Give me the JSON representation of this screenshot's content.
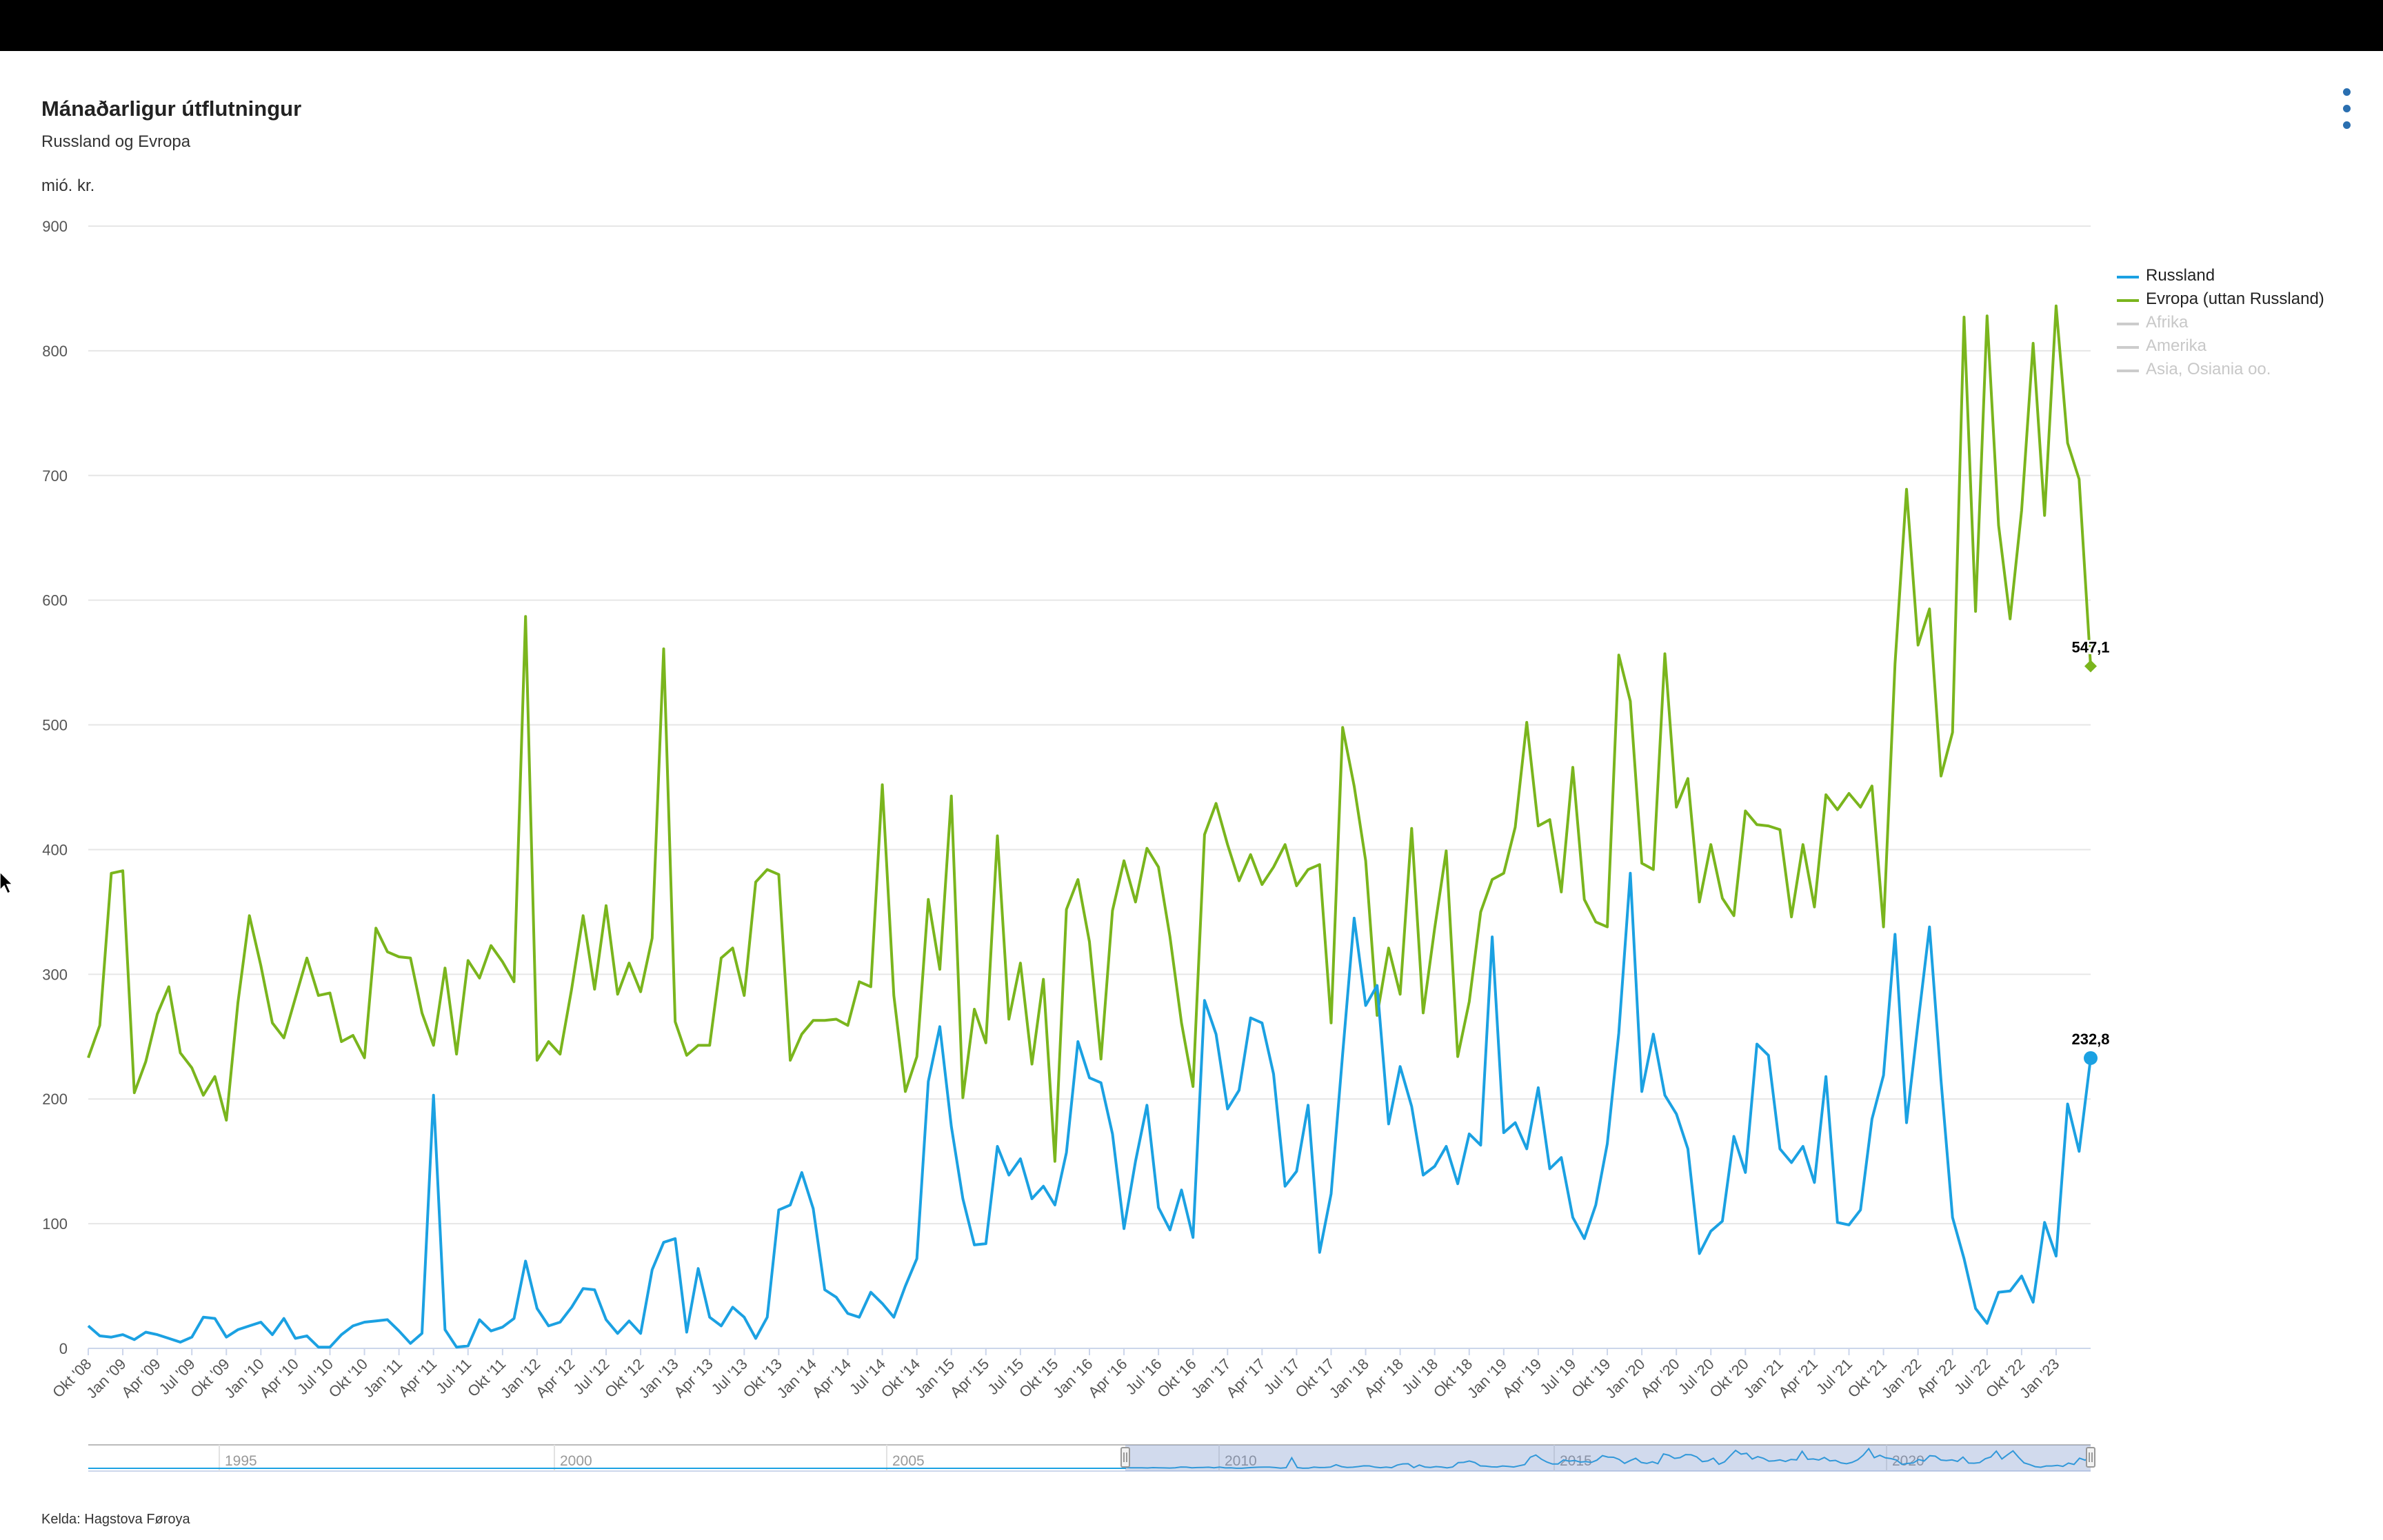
{
  "header": {
    "title": "Mánaðarligur útflutningur",
    "subtitle": "Russland og Evropa",
    "unit": "mió. kr."
  },
  "footer": {
    "source": "Kelda: Hagstova Føroya"
  },
  "menu": {
    "icon": "kebab-menu-icon",
    "color": "#2a6fb0"
  },
  "legend": [
    {
      "label": "Russland",
      "color": "#1ba1e2",
      "active": true
    },
    {
      "label": "Evropa (uttan Russland)",
      "color": "#7ab51d",
      "active": true
    },
    {
      "label": "Afrika",
      "color": "#cccccc",
      "active": false
    },
    {
      "label": "Amerika",
      "color": "#cccccc",
      "active": false
    },
    {
      "label": "Asia, Osiania oo.",
      "color": "#cccccc",
      "active": false
    }
  ],
  "navigator": {
    "year_labels": [
      "1995",
      "2000",
      "2005",
      "2010",
      "2015",
      "2020"
    ]
  },
  "chart_data": {
    "type": "line",
    "title": "Mánaðarligur útflutningur",
    "subtitle": "Russland og Evropa",
    "ylabel": "mió. kr.",
    "ylim": [
      0,
      900
    ],
    "yticks": [
      0,
      100,
      200,
      300,
      400,
      500,
      600,
      700,
      800,
      900
    ],
    "grid": true,
    "legend_position": "right",
    "x_start": "2008-10",
    "x_end": "2023-03",
    "x_tick_labels": [
      "Okt '08",
      "Jan '09",
      "Apr '09",
      "Jul '09",
      "Okt '09",
      "Jan '10",
      "Apr '10",
      "Jul '10",
      "Okt '10",
      "Jan '11",
      "Apr '11",
      "Jul '11",
      "Okt '11",
      "Jan '12",
      "Apr '12",
      "Jul '12",
      "Okt '12",
      "Jan '13",
      "Apr '13",
      "Jul '13",
      "Okt '13",
      "Jan '14",
      "Apr '14",
      "Jul '14",
      "Okt '14",
      "Jan '15",
      "Apr '15",
      "Jul '15",
      "Okt '15",
      "Jan '16",
      "Apr '16",
      "Jul '16",
      "Okt '16",
      "Jan '17",
      "Apr '17",
      "Jul '17",
      "Okt '17",
      "Jan '18",
      "Apr '18",
      "Jul '18",
      "Okt '18",
      "Jan '19",
      "Apr '19",
      "Jul '19",
      "Okt '19",
      "Jan '20",
      "Apr '20",
      "Jul '20",
      "Okt '20",
      "Jan '21",
      "Apr '21",
      "Jul '21",
      "Okt '21",
      "Jan '22",
      "Apr '22",
      "Jul '22",
      "Okt '22",
      "Jan '23"
    ],
    "series": [
      {
        "name": "Russland",
        "color": "#1ba1e2",
        "last_value_label": "232,8",
        "values": [
          18,
          10,
          9,
          11,
          7,
          13,
          11,
          8,
          5,
          9,
          25,
          24,
          9,
          15,
          18,
          21,
          11,
          24,
          8,
          10,
          1,
          1,
          11,
          18,
          21,
          22,
          23,
          14,
          4,
          12,
          203,
          15,
          1,
          2,
          23,
          14,
          17,
          24,
          70,
          32,
          18,
          21,
          33,
          48,
          47,
          23,
          12,
          22,
          12,
          63,
          85,
          88,
          13,
          64,
          25,
          18,
          33,
          25,
          8,
          25,
          111,
          115,
          141,
          112,
          47,
          41,
          28,
          25,
          45,
          36,
          25,
          50,
          72,
          214,
          258,
          178,
          120,
          83,
          84,
          162,
          139,
          152,
          120,
          130,
          115,
          157,
          246,
          217,
          213,
          172,
          96,
          150,
          195,
          113,
          95,
          127,
          89,
          279,
          252,
          192,
          207,
          265,
          261,
          220,
          130,
          142,
          195,
          77,
          124,
          236,
          345,
          275,
          291,
          180,
          226,
          194,
          139,
          146,
          162,
          132,
          172,
          163,
          330,
          173,
          181,
          160,
          209,
          144,
          153,
          105,
          88,
          115,
          164,
          253,
          381,
          206,
          252,
          203,
          188,
          160,
          76,
          94,
          102,
          170,
          141,
          244,
          235,
          160,
          149,
          162,
          133,
          218,
          101,
          99,
          111,
          184,
          219,
          332,
          181,
          261,
          338,
          215,
          105,
          72,
          32,
          20,
          45,
          46,
          58,
          37,
          101,
          74,
          196,
          158,
          232.8
        ]
      },
      {
        "name": "Evropa (uttan Russland)",
        "color": "#7ab51d",
        "last_value_label": "547,1",
        "values": [
          233,
          259,
          381,
          383,
          205,
          230,
          268,
          290,
          237,
          225,
          203,
          218,
          183,
          277,
          347,
          307,
          261,
          249,
          281,
          313,
          283,
          285,
          246,
          251,
          233,
          337,
          318,
          314,
          313,
          269,
          243,
          305,
          236,
          311,
          297,
          323,
          310,
          294,
          587,
          231,
          246,
          236,
          288,
          347,
          288,
          355,
          284,
          309,
          286,
          329,
          561,
          262,
          235,
          243,
          243,
          313,
          321,
          283,
          374,
          384,
          380,
          231,
          252,
          263,
          263,
          264,
          259,
          294,
          290,
          452,
          283,
          206,
          234,
          360,
          304,
          443,
          201,
          272,
          245,
          411,
          264,
          309,
          228,
          296,
          150,
          352,
          376,
          326,
          232,
          351,
          391,
          358,
          401,
          386,
          330,
          261,
          210,
          412,
          437,
          404,
          375,
          396,
          372,
          386,
          404,
          371,
          384,
          388,
          261,
          498,
          451,
          391,
          267,
          321,
          284,
          417,
          269,
          337,
          399,
          234,
          278,
          350,
          376,
          381,
          418,
          502,
          419,
          424,
          366,
          466,
          360,
          342,
          338,
          556,
          519,
          389,
          384,
          557,
          434,
          457,
          358,
          404,
          361,
          347,
          431,
          420,
          419,
          416,
          346,
          404,
          354,
          444,
          432,
          445,
          434,
          451,
          338,
          549,
          689,
          564,
          593,
          459,
          494,
          827,
          591,
          828,
          660,
          585,
          672,
          806,
          668,
          836,
          726,
          697,
          547.1
        ]
      }
    ]
  }
}
